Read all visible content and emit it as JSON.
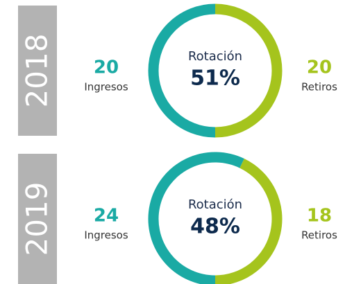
{
  "chart_data": [
    {
      "type": "donut",
      "title": "2018",
      "center_label": "Rotación",
      "center_value": "51%",
      "categories": [
        "Ingresos",
        "Retiros"
      ],
      "values": [
        20,
        20
      ],
      "colors": [
        "#1aaaa4",
        "#a5c41d"
      ]
    },
    {
      "type": "donut",
      "title": "2019",
      "center_label": "Rotación",
      "center_value": "48%",
      "categories": [
        "Ingresos",
        "Retiros"
      ],
      "values": [
        24,
        18
      ],
      "colors": [
        "#1aaaa4",
        "#a5c41d"
      ]
    }
  ]
}
